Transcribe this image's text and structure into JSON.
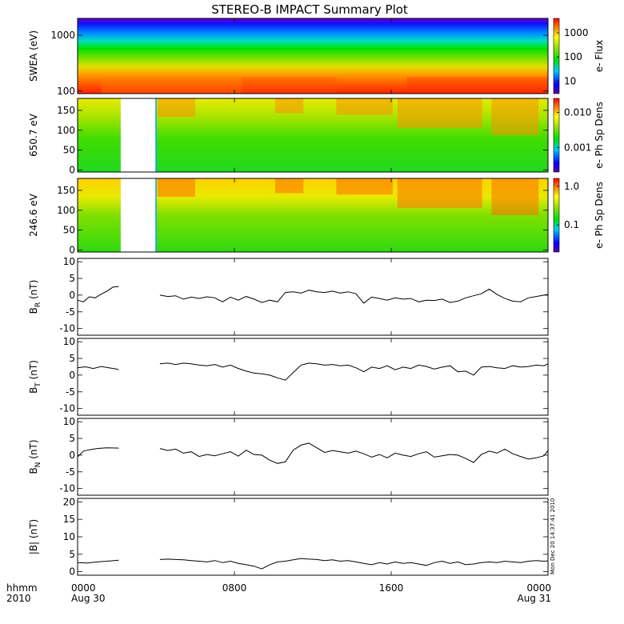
{
  "title": "STEREO-B IMPACT Summary Plot",
  "xaxis": {
    "unit_label": "hhmm",
    "year_label": "2010",
    "ticks": [
      {
        "hour": 0,
        "label": "0000",
        "sublabel": "Aug 30"
      },
      {
        "hour": 8,
        "label": "0800",
        "sublabel": ""
      },
      {
        "hour": 16,
        "label": "1600",
        "sublabel": ""
      },
      {
        "hour": 24,
        "label": "0000",
        "sublabel": "Aug 31"
      }
    ],
    "range_hours": [
      0,
      24
    ]
  },
  "stamp": "Mon Dec 20 14:37:41 2010",
  "chart_data": [
    {
      "type": "heatmap",
      "ylabel": "SWEA (eV)",
      "ylog": true,
      "ylim": [
        90,
        2000
      ],
      "yticks": [
        {
          "v": 100,
          "label": "100"
        },
        {
          "v": 1000,
          "label": "1000"
        }
      ],
      "colorbar": {
        "label": "e- Flux",
        "log": true,
        "range": [
          3,
          4000
        ],
        "ticks": [
          {
            "v": 10,
            "label": "10"
          },
          {
            "v": 100,
            "label": "100"
          },
          {
            "v": 1000,
            "label": "1000"
          }
        ]
      },
      "data_gap_hours": []
    },
    {
      "type": "heatmap",
      "ylabel": "650.7 eV",
      "ylim": [
        -5,
        180
      ],
      "yticks": [
        {
          "v": 0,
          "label": "0"
        },
        {
          "v": 50,
          "label": "50"
        },
        {
          "v": 100,
          "label": "100"
        },
        {
          "v": 150,
          "label": "150"
        }
      ],
      "colorbar": {
        "label": "e- Ph Sp Dens",
        "log": true,
        "range": [
          0.0002,
          0.025
        ],
        "ticks": [
          {
            "v": 0.001,
            "label": "0.001"
          },
          {
            "v": 0.01,
            "label": "0.010"
          }
        ]
      },
      "data_gap_hours": [
        2.2,
        4.0
      ]
    },
    {
      "type": "heatmap",
      "ylabel": "246.6 eV",
      "ylim": [
        -5,
        180
      ],
      "yticks": [
        {
          "v": 0,
          "label": "0"
        },
        {
          "v": 50,
          "label": "50"
        },
        {
          "v": 100,
          "label": "100"
        },
        {
          "v": 150,
          "label": "150"
        }
      ],
      "colorbar": {
        "label": "e- Ph Sp Dens",
        "log": true,
        "range": [
          0.02,
          1.6
        ],
        "ticks": [
          {
            "v": 0.1,
            "label": "0.1"
          },
          {
            "v": 1.0,
            "label": "1.0"
          }
        ]
      },
      "data_gap_hours": [
        2.2,
        4.0
      ]
    },
    {
      "type": "line",
      "ylabel": "B",
      "ylabel_sub": "R",
      "ylabel_unit": "(nT)",
      "ylim": [
        -12,
        11
      ],
      "yticks": [
        {
          "v": -10,
          "label": "-10"
        },
        {
          "v": -5,
          "label": "-5"
        },
        {
          "v": 0,
          "label": "0"
        },
        {
          "v": 5,
          "label": "5"
        },
        {
          "v": 10,
          "label": "10"
        }
      ],
      "x": [
        0,
        0.3,
        0.6,
        0.9,
        1.2,
        1.5,
        1.8,
        2.1,
        4.2,
        4.6,
        5.0,
        5.4,
        5.8,
        6.2,
        6.6,
        7.0,
        7.4,
        7.8,
        8.2,
        8.6,
        9.0,
        9.4,
        9.8,
        10.2,
        10.6,
        11.0,
        11.4,
        11.8,
        12.2,
        12.6,
        13.0,
        13.4,
        13.8,
        14.2,
        14.6,
        15.0,
        15.4,
        15.8,
        16.2,
        16.6,
        17.0,
        17.4,
        17.8,
        18.2,
        18.6,
        19.0,
        19.4,
        19.8,
        20.2,
        20.6,
        21.0,
        21.4,
        21.8,
        22.2,
        22.6,
        23.0,
        23.4,
        23.8,
        24.0
      ],
      "y": [
        -1.5,
        -2.0,
        -0.5,
        -0.8,
        0.3,
        1.2,
        2.4,
        2.6,
        0.0,
        -0.4,
        -0.2,
        -1.2,
        -0.6,
        -1.0,
        -0.5,
        -0.8,
        -2.0,
        -0.6,
        -1.5,
        -0.4,
        -1.2,
        -2.2,
        -1.5,
        -2.0,
        0.8,
        1.0,
        0.6,
        1.5,
        1.0,
        0.8,
        1.2,
        0.6,
        1.0,
        0.4,
        -2.4,
        -0.6,
        -1.0,
        -1.5,
        -0.8,
        -1.2,
        -1.0,
        -2.0,
        -1.5,
        -1.6,
        -1.2,
        -2.2,
        -1.8,
        -0.8,
        -0.2,
        0.4,
        1.8,
        0.2,
        -1.0,
        -1.8,
        -2.0,
        -0.8,
        -0.4,
        0.0,
        0.2
      ]
    },
    {
      "type": "line",
      "ylabel": "B",
      "ylabel_sub": "T",
      "ylabel_unit": "(nT)",
      "ylim": [
        -12,
        11
      ],
      "yticks": [
        {
          "v": -10,
          "label": "-10"
        },
        {
          "v": -5,
          "label": "-5"
        },
        {
          "v": 0,
          "label": "0"
        },
        {
          "v": 5,
          "label": "5"
        },
        {
          "v": 10,
          "label": "10"
        }
      ],
      "x": [
        0,
        0.4,
        0.8,
        1.2,
        1.6,
        2.0,
        2.1,
        4.2,
        4.6,
        5.0,
        5.4,
        5.8,
        6.2,
        6.6,
        7.0,
        7.4,
        7.8,
        8.2,
        8.6,
        9.0,
        9.4,
        9.8,
        10.2,
        10.6,
        11.0,
        11.4,
        11.8,
        12.2,
        12.6,
        13.0,
        13.4,
        13.8,
        14.2,
        14.6,
        15.0,
        15.4,
        15.8,
        16.2,
        16.6,
        17.0,
        17.4,
        17.8,
        18.2,
        18.6,
        19.0,
        19.4,
        19.8,
        20.2,
        20.6,
        21.0,
        21.4,
        21.8,
        22.2,
        22.6,
        23.0,
        23.4,
        23.8,
        24.0
      ],
      "y": [
        2.2,
        2.5,
        2.0,
        2.6,
        2.2,
        1.8,
        1.6,
        3.4,
        3.6,
        3.2,
        3.6,
        3.4,
        3.0,
        2.8,
        3.2,
        2.4,
        3.0,
        2.0,
        1.2,
        0.6,
        0.4,
        0.0,
        -0.8,
        -1.5,
        0.8,
        3.0,
        3.6,
        3.4,
        3.0,
        3.2,
        2.8,
        3.0,
        2.2,
        1.0,
        2.4,
        2.0,
        2.8,
        1.6,
        2.4,
        2.0,
        3.0,
        2.6,
        1.8,
        2.4,
        2.8,
        1.0,
        1.2,
        0.0,
        2.4,
        2.6,
        2.2,
        2.0,
        2.8,
        2.4,
        2.6,
        3.0,
        2.8,
        3.4
      ]
    },
    {
      "type": "line",
      "ylabel": "B",
      "ylabel_sub": "N",
      "ylabel_unit": "(nT)",
      "ylim": [
        -12,
        11
      ],
      "yticks": [
        {
          "v": -10,
          "label": "-10"
        },
        {
          "v": -5,
          "label": "-5"
        },
        {
          "v": 0,
          "label": "0"
        },
        {
          "v": 5,
          "label": "5"
        },
        {
          "v": 10,
          "label": "10"
        }
      ],
      "x": [
        0,
        0.3,
        0.6,
        1.0,
        1.5,
        2.1,
        4.2,
        4.6,
        5.0,
        5.4,
        5.8,
        6.2,
        6.6,
        7.0,
        7.4,
        7.8,
        8.2,
        8.6,
        9.0,
        9.4,
        9.8,
        10.2,
        10.6,
        11.0,
        11.4,
        11.8,
        12.2,
        12.6,
        13.0,
        13.4,
        13.8,
        14.2,
        14.6,
        15.0,
        15.4,
        15.8,
        16.2,
        16.6,
        17.0,
        17.4,
        17.8,
        18.2,
        18.6,
        19.0,
        19.4,
        19.8,
        20.2,
        20.6,
        21.0,
        21.4,
        21.8,
        22.2,
        22.6,
        23.0,
        23.4,
        23.8,
        24.0
      ],
      "y": [
        -0.5,
        1.2,
        1.6,
        2.0,
        2.2,
        2.1,
        2.0,
        1.4,
        1.8,
        0.6,
        1.0,
        -0.4,
        0.2,
        -0.2,
        0.4,
        1.0,
        -0.3,
        1.5,
        0.2,
        0.0,
        -1.5,
        -2.5,
        -2.0,
        1.5,
        3.0,
        3.6,
        2.2,
        0.8,
        1.4,
        1.0,
        0.6,
        1.2,
        0.4,
        -0.6,
        0.2,
        -0.8,
        0.6,
        0.0,
        -0.4,
        0.4,
        1.0,
        -0.6,
        -0.2,
        0.2,
        0.0,
        -1.0,
        -2.2,
        0.2,
        1.2,
        0.6,
        1.8,
        0.4,
        -0.4,
        -1.2,
        -0.8,
        -0.2,
        1.4
      ]
    },
    {
      "type": "line",
      "ylabel": "|B| (nT)",
      "ylim": [
        -1,
        21
      ],
      "yticks": [
        {
          "v": 0,
          "label": "0"
        },
        {
          "v": 5,
          "label": "5"
        },
        {
          "v": 10,
          "label": "10"
        },
        {
          "v": 15,
          "label": "15"
        },
        {
          "v": 20,
          "label": "20"
        }
      ],
      "x": [
        0,
        0.5,
        1.0,
        1.5,
        2.1,
        4.2,
        4.6,
        5.0,
        5.4,
        5.8,
        6.2,
        6.6,
        7.0,
        7.4,
        7.8,
        8.2,
        8.6,
        9.0,
        9.4,
        9.8,
        10.2,
        10.6,
        11.0,
        11.4,
        11.8,
        12.2,
        12.6,
        13.0,
        13.4,
        13.8,
        14.2,
        14.6,
        15.0,
        15.4,
        15.8,
        16.2,
        16.6,
        17.0,
        17.4,
        17.8,
        18.2,
        18.6,
        19.0,
        19.4,
        19.8,
        20.2,
        20.6,
        21.0,
        21.4,
        21.8,
        22.2,
        22.6,
        23.0,
        23.4,
        23.8,
        24.0
      ],
      "y": [
        2.6,
        2.5,
        2.8,
        3.0,
        3.3,
        3.5,
        3.6,
        3.5,
        3.4,
        3.2,
        3.0,
        2.8,
        3.2,
        2.6,
        3.0,
        2.4,
        2.0,
        1.6,
        0.8,
        2.0,
        2.8,
        3.0,
        3.4,
        3.8,
        3.6,
        3.5,
        3.2,
        3.4,
        3.0,
        3.2,
        2.8,
        2.4,
        2.0,
        2.6,
        2.2,
        2.8,
        2.4,
        2.6,
        2.2,
        1.8,
        2.6,
        3.0,
        2.4,
        2.8,
        2.0,
        2.2,
        2.6,
        2.8,
        2.6,
        3.0,
        2.8,
        2.6,
        3.0,
        3.2,
        3.0,
        3.1
      ]
    }
  ]
}
